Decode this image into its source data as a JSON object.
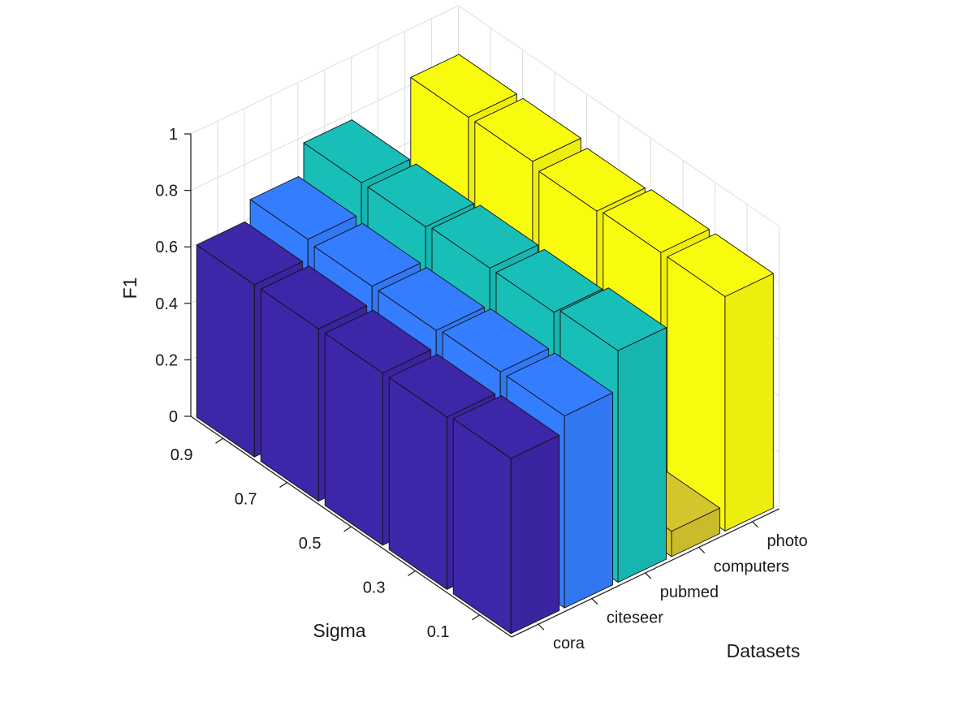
{
  "chart_data": {
    "type": "bar3d",
    "title": "",
    "xlabel": "Datasets",
    "ylabel": "Sigma",
    "zlabel": "F1",
    "zlim": [
      0,
      1
    ],
    "z_ticks": [
      "0",
      "0.2",
      "0.4",
      "0.6",
      "0.8",
      "1"
    ],
    "categories": [
      "cora",
      "citeseer",
      "pubmed",
      "computers",
      "photo"
    ],
    "sigma": [
      "0.1",
      "0.3",
      "0.5",
      "0.7",
      "0.9"
    ],
    "series": [
      {
        "values": [
          0.62,
          0.61,
          0.61,
          0.61,
          0.61
        ]
      },
      {
        "values": [
          0.68,
          0.68,
          0.67,
          0.67,
          0.68
        ]
      },
      {
        "values": [
          0.82,
          0.8,
          0.8,
          0.79,
          0.79
        ]
      },
      {
        "values": [
          0.09,
          0.1,
          0.11,
          0.12,
          0.14
        ]
      },
      {
        "values": [
          0.83,
          0.83,
          0.82,
          0.84,
          0.84
        ]
      }
    ],
    "colors": [
      "#3e26a8",
      "#357dff",
      "#17bfb8",
      "#d4c52c",
      "#f9fb0e"
    ],
    "grid": true
  }
}
